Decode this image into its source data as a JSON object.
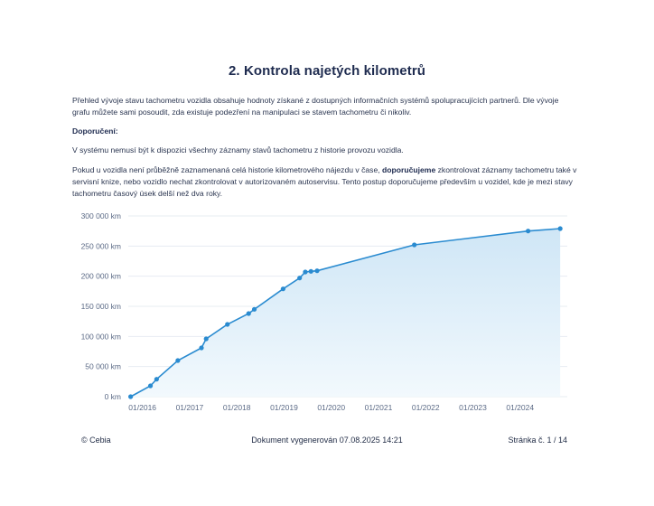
{
  "document": {
    "title": "2. Kontrola najetých kilometrů",
    "intro": "Přehled vývoje stavu tachometru vozidla obsahuje hodnoty získané z dostupných informačních systémů spolupracujících partnerů. Dle vývoje grafu můžete sami posoudit, zda existuje podezření na manipulaci se stavem tachometru či nikoliv.",
    "recommend_heading": "Doporučení:",
    "note": "V systému nemusí být k dispozici všechny záznamy stavů tachometru z historie provozu vozidla.",
    "advice_part1": "Pokud u vozidla není průběžně zaznamenaná celá historie kilometrového nájezdu v čase, ",
    "advice_bold": "doporučujeme",
    "advice_part2": " zkontrolovat záznamy tachometru také v servisní knize, nebo vozidlo nechat zkontrolovat v autorizovaném autoservisu. Tento postup doporučujeme především u vozidel, kde je mezi stavy tachometru časový úsek delší než dva roky."
  },
  "footer": {
    "left": "© Cebia",
    "center": "Dokument vygenerován 07.08.2025 14:21",
    "right": "Stránka č. 1 / 14"
  },
  "colors": {
    "line": "#2a8bd0",
    "fill_top": "#cfe6f6",
    "fill_bottom": "#f2f9fd",
    "grid": "#e7ecf2"
  },
  "chart_data": {
    "type": "area",
    "ylim": [
      0,
      300000
    ],
    "yticks": [
      0,
      50000,
      100000,
      150000,
      200000,
      250000,
      300000
    ],
    "ytick_labels": [
      "0 km",
      "50 000 km",
      "100 000 km",
      "150 000 km",
      "200 000 km",
      "250 000 km",
      "300 000 km"
    ],
    "xlim": [
      2015.7,
      2025.0
    ],
    "xticks": [
      2016,
      2017,
      2018,
      2019,
      2020,
      2021,
      2022,
      2023,
      2024
    ],
    "xtick_labels": [
      "01/2016",
      "01/2017",
      "01/2018",
      "01/2019",
      "01/2020",
      "01/2021",
      "01/2022",
      "01/2023",
      "01/2024"
    ],
    "grid": true,
    "legend": "none",
    "points": [
      {
        "x": 2015.75,
        "y": 0
      },
      {
        "x": 2016.17,
        "y": 18000
      },
      {
        "x": 2016.3,
        "y": 29000
      },
      {
        "x": 2016.75,
        "y": 60000
      },
      {
        "x": 2017.25,
        "y": 81000
      },
      {
        "x": 2017.35,
        "y": 96000
      },
      {
        "x": 2017.8,
        "y": 120000
      },
      {
        "x": 2018.25,
        "y": 138000
      },
      {
        "x": 2018.37,
        "y": 145000
      },
      {
        "x": 2018.98,
        "y": 179000
      },
      {
        "x": 2019.33,
        "y": 197000
      },
      {
        "x": 2019.45,
        "y": 207000
      },
      {
        "x": 2019.57,
        "y": 208000
      },
      {
        "x": 2019.7,
        "y": 209000
      },
      {
        "x": 2021.76,
        "y": 252000
      },
      {
        "x": 2024.17,
        "y": 275000
      },
      {
        "x": 2024.85,
        "y": 279000
      }
    ]
  }
}
